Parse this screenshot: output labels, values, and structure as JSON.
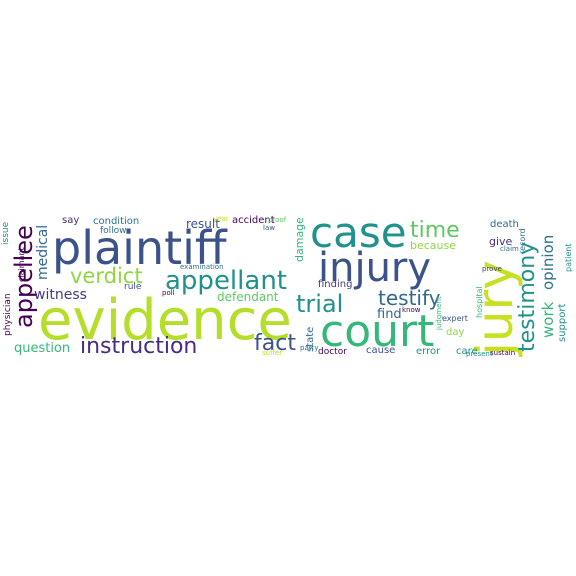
{
  "words": {
    "evidence": "evidence",
    "plaintiff": "plaintiff",
    "court": "court",
    "case": "case",
    "injury": "injury",
    "jury": "jury",
    "appellant": "appellant",
    "appellee": "appellee",
    "instruction": "instruction",
    "verdict": "verdict",
    "trial": "trial",
    "testimony": "testimony",
    "fact": "fact",
    "testify": "testify",
    "time": "time",
    "work": "work",
    "opinion": "opinion",
    "witness": "witness",
    "medical": "medical",
    "question": "question",
    "defendant": "defendant",
    "find": "find",
    "because": "because",
    "give": "give",
    "death": "death",
    "result": "result",
    "condition": "condition",
    "say": "say",
    "accident": "accident",
    "damage": "damage",
    "finding": "finding",
    "state": "state",
    "day": "day",
    "cause": "cause",
    "error": "error",
    "care": "care",
    "doctor": "doctor",
    "physician": "physician",
    "claimant": "claimant",
    "issue": "issue",
    "follow": "follow",
    "rule": "rule",
    "examination": "examination",
    "law": "law",
    "proof": "proof",
    "year": "year",
    "party": "party",
    "know": "know",
    "judgment": "judgment",
    "expert": "expert",
    "present": "present",
    "hospital": "hospital",
    "record": "record",
    "prove": "prove",
    "claim": "claim",
    "patient": "patient",
    "support": "support",
    "sustain": "sustain",
    "suffer": "suffer",
    "poll": "poll"
  },
  "colors": {
    "background": "#ffffff",
    "dark_purple": "#440154",
    "indigo": "#3b528b",
    "slate_blue": "#31688e",
    "teal": "#21918c",
    "green_teal": "#35b779",
    "green": "#5ec962",
    "lime": "#90d743",
    "yellow_green": "#c7e020",
    "yellow": "#fde725"
  }
}
